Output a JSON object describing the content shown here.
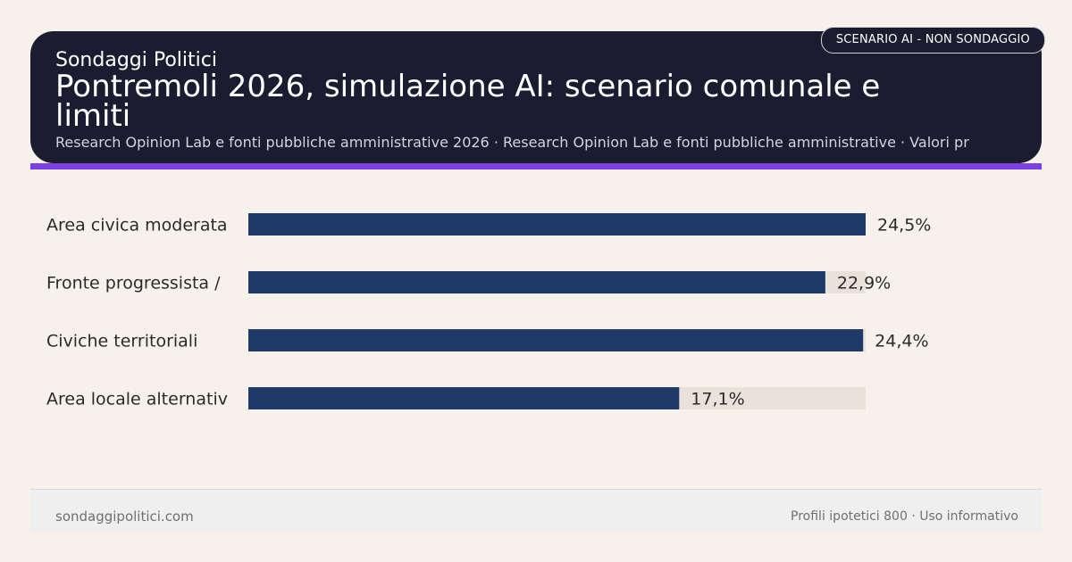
{
  "header": {
    "brand": "Sondaggi Politici",
    "title": "Pontremoli 2026, simulazione AI: scenario comunale e limiti",
    "subtitle": "Research Opinion Lab e fonti pubbliche amministrative 2026 · Research Opinion Lab e fonti pubbliche amministrative · Valori pr",
    "badge": "SCENARIO AI - NON SONDAGGIO"
  },
  "colors": {
    "bar": "#1f3a68",
    "track": "#e8e2da",
    "accent": "#7b3fe4",
    "header_bg": "#1c1c30"
  },
  "chart_data": {
    "type": "bar",
    "orientation": "horizontal",
    "categories": [
      "Area civica moderata",
      "Fronte progressista /",
      "Civiche territoriali",
      "Area locale alternativ"
    ],
    "values": [
      24.5,
      22.9,
      24.4,
      17.1
    ],
    "value_labels": [
      "24,5%",
      "22,9%",
      "24,4%",
      "17,1%"
    ],
    "xlim": [
      0,
      24.5
    ],
    "grid": false,
    "legend": "none"
  },
  "footer": {
    "site": "sondaggipolitici.com",
    "note": "Profili ipotetici 800 · Uso informativo"
  }
}
